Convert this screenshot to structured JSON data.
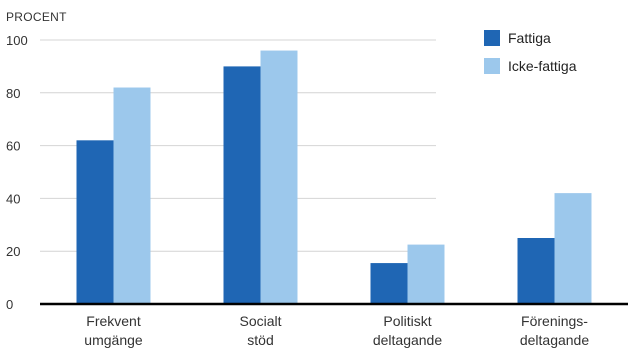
{
  "chart_data": {
    "type": "bar",
    "unit_label": "PROCENT",
    "categories": [
      [
        "Frekvent",
        "umgänge"
      ],
      [
        "Socialt",
        "stöd"
      ],
      [
        "Politiskt",
        "deltagande"
      ],
      [
        "Förenings-",
        "deltagande"
      ]
    ],
    "series": [
      {
        "name": "Fattiga",
        "color": "#1f66b4",
        "values": [
          62,
          90,
          15.5,
          25
        ]
      },
      {
        "name": "Icke-fattiga",
        "color": "#9cc8ec",
        "values": [
          82,
          96,
          22.5,
          42
        ]
      }
    ],
    "ylim": [
      0,
      100
    ],
    "yticks": [
      0,
      20,
      40,
      60,
      80,
      100
    ],
    "grid": true,
    "legend_position": "top-right"
  }
}
